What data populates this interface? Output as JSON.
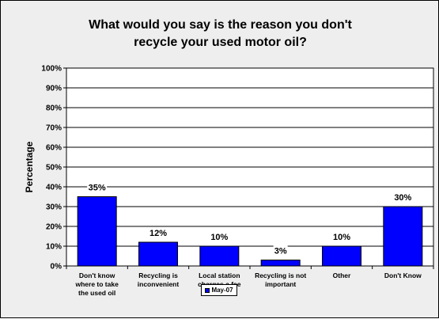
{
  "chart_data": {
    "type": "bar",
    "title_line1": "What would you say is the reason you don't",
    "title_line2": "recycle your used motor oil?",
    "ylabel": "Percentage",
    "xlabel": "",
    "ylim": [
      0,
      100
    ],
    "yticks": [
      "0%",
      "10%",
      "20%",
      "30%",
      "40%",
      "50%",
      "60%",
      "70%",
      "80%",
      "90%",
      "100%"
    ],
    "categories": [
      [
        "Don't know",
        "where to take",
        "the used oil"
      ],
      [
        "Recycling is",
        "inconvenient"
      ],
      [
        "Local station",
        "charges a fee"
      ],
      [
        "Recycling is not",
        "important"
      ],
      [
        "Other"
      ],
      [
        "Don't Know"
      ]
    ],
    "series": [
      {
        "name": "May-07",
        "values": [
          35,
          12,
          10,
          3,
          10,
          30
        ],
        "labels": [
          "35%",
          "12%",
          "10%",
          "3%",
          "10%",
          "30%"
        ]
      }
    ],
    "grid": true,
    "legend_position": "bottom",
    "colors": {
      "bar": "#0000ff",
      "plot_bg": "#ffffff",
      "chart_bg": "#eeeeee"
    }
  }
}
